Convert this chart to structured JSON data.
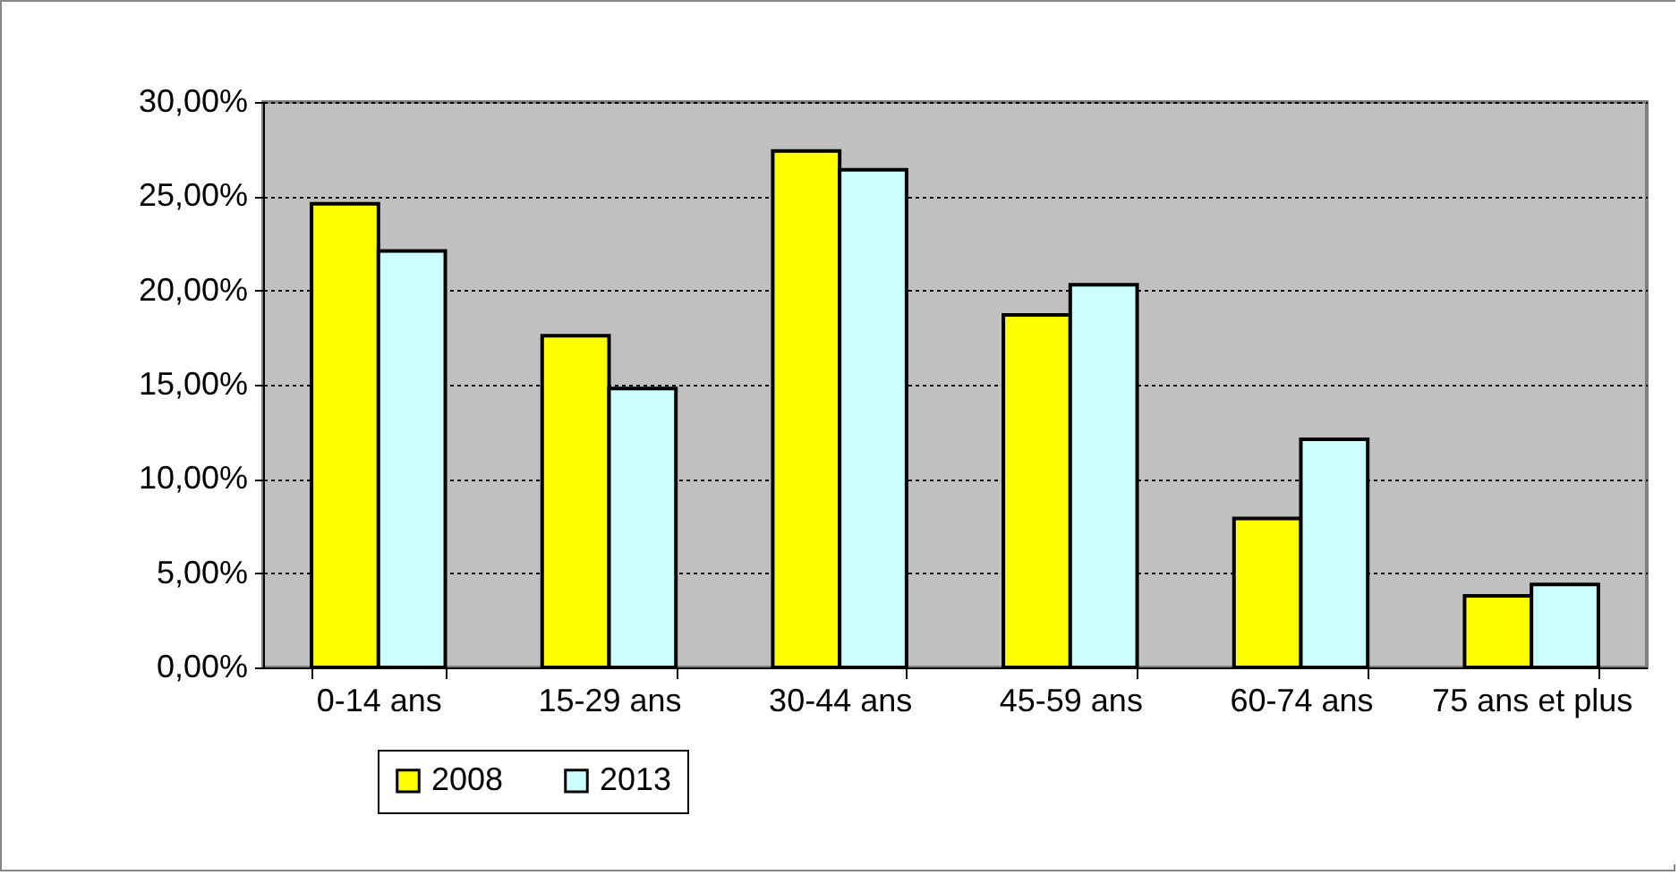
{
  "chart_data": {
    "type": "bar",
    "categories": [
      "0-14 ans",
      "15-29 ans",
      "30-44 ans",
      "45-59 ans",
      "60-74 ans",
      "75 ans et plus"
    ],
    "series": [
      {
        "name": "2008",
        "color": "#ffff00",
        "values": [
          24.6,
          17.6,
          27.4,
          18.7,
          7.9,
          3.8
        ]
      },
      {
        "name": "2013",
        "color": "#ccffff",
        "values": [
          22.1,
          14.8,
          26.4,
          20.3,
          12.1,
          4.4
        ]
      }
    ],
    "ylim": [
      0,
      30
    ],
    "yticks": [
      {
        "value": 0,
        "label": "0,00%"
      },
      {
        "value": 5,
        "label": "5,00%"
      },
      {
        "value": 10,
        "label": "10,00%"
      },
      {
        "value": 15,
        "label": "15,00%"
      },
      {
        "value": 20,
        "label": "20,00%"
      },
      {
        "value": 25,
        "label": "25,00%"
      },
      {
        "value": 30,
        "label": "30,00%"
      }
    ],
    "grid": "y",
    "legend": "bottom"
  }
}
